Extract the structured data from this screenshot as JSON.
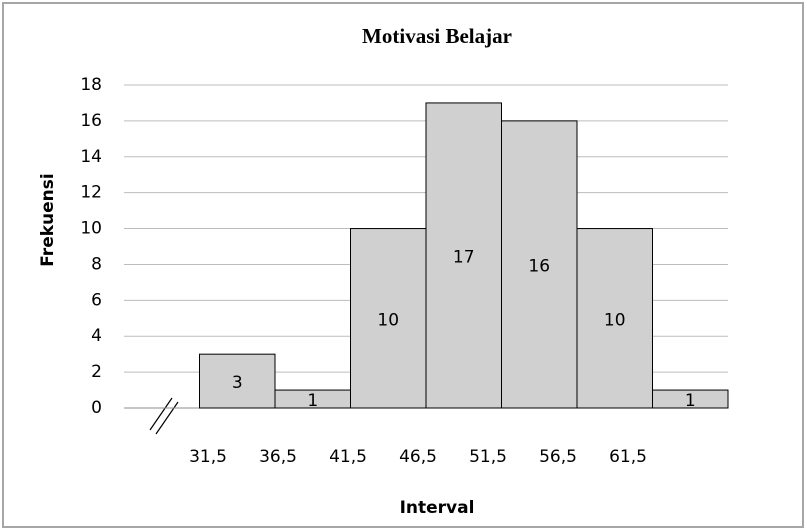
{
  "chart_data": {
    "type": "bar",
    "title": "Motivasi Belajar",
    "xlabel": "Interval",
    "ylabel": "Frekuensi",
    "categories": [
      "31,5",
      "36,5",
      "41,5",
      "46,5",
      "51,5",
      "56,5",
      "61,5"
    ],
    "values": [
      3,
      1,
      10,
      17,
      16,
      10,
      1
    ],
    "color": "#d0d0d0",
    "ylim": [
      0,
      18
    ],
    "yticks": [
      0,
      2,
      4,
      6,
      8,
      10,
      12,
      14,
      16,
      18
    ],
    "grid": true
  }
}
